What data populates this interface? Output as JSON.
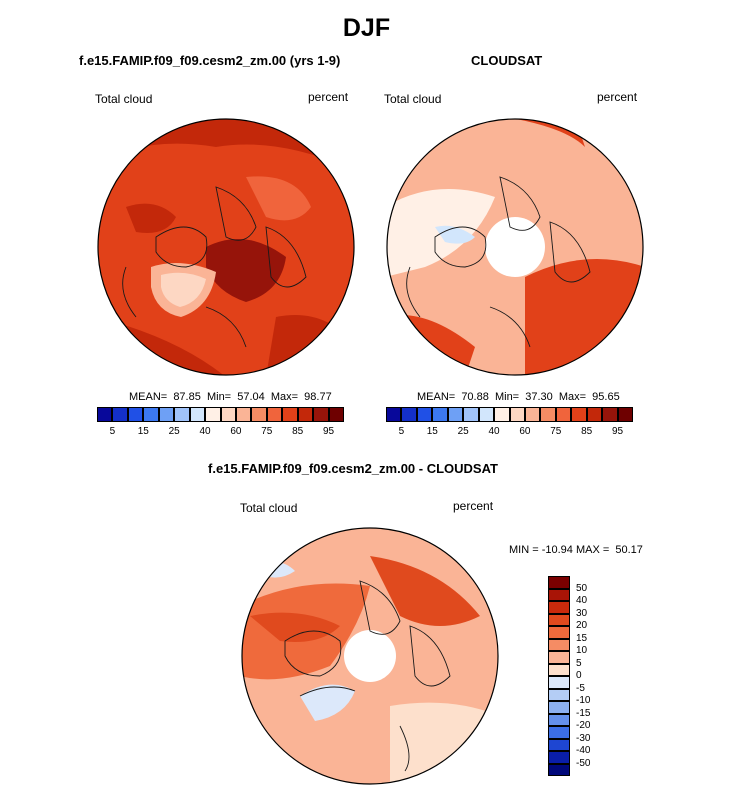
{
  "page_title": "DJF",
  "chart_data": [
    {
      "type": "heatmap",
      "projection": "north-polar-stereographic",
      "title": "f.e15.FAMIP.f09_f09.cesm2_zm.00 (yrs 1-9)",
      "variable": "Total cloud",
      "units": "percent",
      "stats": {
        "mean": "87.85",
        "min": "57.04",
        "max": "98.77"
      },
      "stats_text": "MEAN=  87.85  Min=  57.04  Max=  98.77",
      "colorbar_ticks": [
        "5",
        "15",
        "25",
        "40",
        "60",
        "75",
        "85",
        "95"
      ],
      "colors": [
        "#08089a",
        "#1430c8",
        "#2050e6",
        "#3c78f0",
        "#6ea0f5",
        "#a0c3fa",
        "#d2e6fc",
        "#fff0e6",
        "#fdd7c3",
        "#fab496",
        "#f58c64",
        "#f0643c",
        "#e14119",
        "#c3280a",
        "#96140a",
        "#6e0000"
      ]
    },
    {
      "type": "heatmap",
      "projection": "north-polar-stereographic",
      "title": "CLOUDSAT",
      "variable": "Total cloud",
      "units": "percent",
      "stats": {
        "mean": "70.88",
        "min": "37.30",
        "max": "95.65"
      },
      "stats_text": "MEAN=  70.88  Min=  37.30  Max=  95.65",
      "colorbar_ticks": [
        "5",
        "15",
        "25",
        "40",
        "60",
        "75",
        "85",
        "95"
      ],
      "colors": [
        "#08089a",
        "#1430c8",
        "#2050e6",
        "#3c78f0",
        "#6ea0f5",
        "#a0c3fa",
        "#d2e6fc",
        "#fff0e6",
        "#fdd7c3",
        "#fab496",
        "#f58c64",
        "#f0643c",
        "#e14119",
        "#c3280a",
        "#96140a",
        "#6e0000"
      ]
    },
    {
      "type": "heatmap",
      "projection": "north-polar-stereographic",
      "title": "f.e15.FAMIP.f09_f09.cesm2_zm.00 - CLOUDSAT",
      "variable": "Total cloud",
      "units": "percent",
      "stats": {
        "min": "-10.94",
        "max": "50.17"
      },
      "stats_text": "MIN = -10.94 MAX =  50.17",
      "colorbar_ticks": [
        "50",
        "40",
        "30",
        "20",
        "15",
        "10",
        "5",
        "0",
        "-5",
        "-10",
        "-15",
        "-20",
        "-30",
        "-40",
        "-50"
      ],
      "colors": [
        "#7a0000",
        "#a81406",
        "#c82a0c",
        "#e04a1e",
        "#ef6a3c",
        "#f58c64",
        "#fab496",
        "#fde0cc",
        "#dce8fa",
        "#b4cdf5",
        "#8cb0f0",
        "#6490eb",
        "#3c6ee6",
        "#1e46d2",
        "#0a1ea8",
        "#00087a"
      ]
    }
  ]
}
